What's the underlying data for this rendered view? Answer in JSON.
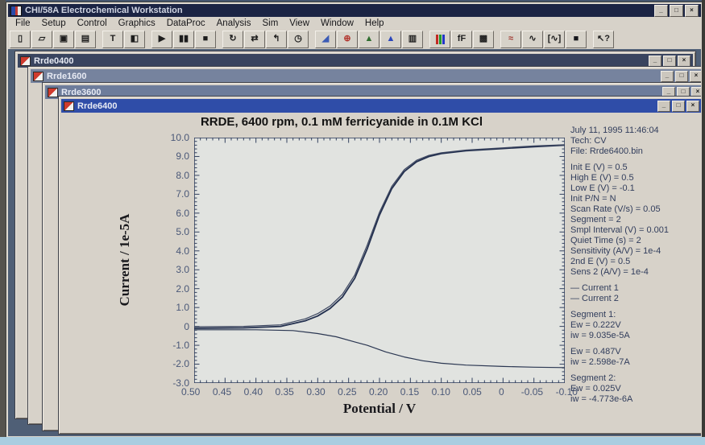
{
  "app": {
    "title": "CHI/58A Electrochemical Workstation",
    "window_controls": [
      "_",
      "□",
      "×"
    ]
  },
  "menu": {
    "items": [
      "File",
      "Setup",
      "Control",
      "Graphics",
      "DataProc",
      "Analysis",
      "Sim",
      "View",
      "Window",
      "Help"
    ]
  },
  "toolbar": {
    "buttons": [
      {
        "name": "new",
        "glyph": "▯"
      },
      {
        "name": "open",
        "glyph": "▱"
      },
      {
        "name": "save",
        "glyph": "▣"
      },
      {
        "name": "print",
        "glyph": "▤"
      },
      {
        "name": "text-tool",
        "glyph": "T"
      },
      {
        "name": "window-tool",
        "glyph": "◧"
      },
      {
        "name": "run",
        "glyph": "▶"
      },
      {
        "name": "pause",
        "glyph": "▮▮"
      },
      {
        "name": "stop",
        "glyph": "■"
      },
      {
        "name": "repeat",
        "glyph": "↻"
      },
      {
        "name": "reverse",
        "glyph": "⇄"
      },
      {
        "name": "step",
        "glyph": "↰"
      },
      {
        "name": "timer",
        "glyph": "◷"
      },
      {
        "name": "graph",
        "glyph": "◢"
      },
      {
        "name": "zoom",
        "glyph": "⊕"
      },
      {
        "name": "peak-green",
        "glyph": "▲"
      },
      {
        "name": "peak-blue",
        "glyph": "▲"
      },
      {
        "name": "overlay",
        "glyph": "▥"
      },
      {
        "name": "colors",
        "glyph": ""
      },
      {
        "name": "font",
        "glyph": "fF"
      },
      {
        "name": "copy",
        "glyph": "▩"
      },
      {
        "name": "smooth",
        "glyph": "≈"
      },
      {
        "name": "wave",
        "glyph": "∿"
      },
      {
        "name": "fit",
        "glyph": "[∿]"
      },
      {
        "name": "data-window",
        "glyph": "■"
      },
      {
        "name": "help",
        "glyph": "↖?"
      }
    ]
  },
  "windows": [
    {
      "title": "Rrde0400",
      "state": "inactive"
    },
    {
      "title": "Rrde1600",
      "state": "inactive"
    },
    {
      "title": "Rrde3600",
      "state": "inactive"
    },
    {
      "title": "Rrde6400",
      "state": "active"
    }
  ],
  "chart_data": {
    "type": "line",
    "title": "RRDE, 6400 rpm, 0.1 mM ferricyanide in 0.1M KCl",
    "xlabel": "Potential / V",
    "ylabel": "Current / 1e-5A",
    "x_range": [
      0.5,
      -0.1
    ],
    "y_range": [
      -3.0,
      10.0
    ],
    "x_axis_reversed": true,
    "grid": false,
    "x_major_tick": 0.05,
    "x_minor_tick": 0.01,
    "y_major_tick": 1.0,
    "y_minor_tick": 0.2,
    "axis_color": "#32405e",
    "plot_bg": "#e1e3e0",
    "x_tick_labels": [
      "0.50",
      "0.45",
      "0.40",
      "0.35",
      "0.30",
      "0.25",
      "0.20",
      "0.15",
      "0.10",
      "0.05",
      "0",
      "-0.05",
      "-0.10"
    ],
    "y_tick_labels": [
      "10.0",
      "9.0",
      "8.0",
      "7.0",
      "6.0",
      "5.0",
      "4.0",
      "3.0",
      "2.0",
      "1.0",
      "0",
      "-1.0",
      "-2.0",
      "-3.0"
    ],
    "series": [
      {
        "name": "Current 1 (disk, segment 1)",
        "color": "#23304f",
        "width": 1.8,
        "points": [
          [
            0.5,
            -0.1
          ],
          [
            0.42,
            -0.08
          ],
          [
            0.36,
            0.0
          ],
          [
            0.32,
            0.3
          ],
          [
            0.3,
            0.55
          ],
          [
            0.28,
            0.95
          ],
          [
            0.26,
            1.55
          ],
          [
            0.24,
            2.55
          ],
          [
            0.22,
            4.1
          ],
          [
            0.2,
            5.9
          ],
          [
            0.18,
            7.3
          ],
          [
            0.16,
            8.2
          ],
          [
            0.14,
            8.72
          ],
          [
            0.12,
            9.0
          ],
          [
            0.1,
            9.15
          ],
          [
            0.06,
            9.3
          ],
          [
            0.0,
            9.42
          ],
          [
            -0.05,
            9.52
          ],
          [
            -0.1,
            9.6
          ]
        ]
      },
      {
        "name": "Current 1 (disk, segment 2)",
        "color": "#3c4660",
        "width": 1.2,
        "points": [
          [
            0.5,
            -0.02
          ],
          [
            0.42,
            0.0
          ],
          [
            0.36,
            0.08
          ],
          [
            0.32,
            0.4
          ],
          [
            0.3,
            0.68
          ],
          [
            0.28,
            1.08
          ],
          [
            0.26,
            1.7
          ],
          [
            0.24,
            2.72
          ],
          [
            0.22,
            4.3
          ],
          [
            0.2,
            6.05
          ],
          [
            0.18,
            7.42
          ],
          [
            0.16,
            8.3
          ],
          [
            0.14,
            8.8
          ],
          [
            0.12,
            9.06
          ],
          [
            0.1,
            9.2
          ],
          [
            0.06,
            9.34
          ],
          [
            0.0,
            9.46
          ],
          [
            -0.05,
            9.56
          ],
          [
            -0.1,
            9.62
          ]
        ]
      },
      {
        "name": "Current 2 (ring)",
        "color": "#2b3752",
        "width": 1.2,
        "points": [
          [
            0.5,
            -0.18
          ],
          [
            0.4,
            -0.18
          ],
          [
            0.34,
            -0.22
          ],
          [
            0.3,
            -0.38
          ],
          [
            0.27,
            -0.55
          ],
          [
            0.24,
            -0.82
          ],
          [
            0.22,
            -1.0
          ],
          [
            0.19,
            -1.35
          ],
          [
            0.16,
            -1.62
          ],
          [
            0.13,
            -1.82
          ],
          [
            0.1,
            -1.95
          ],
          [
            0.06,
            -2.05
          ],
          [
            0.0,
            -2.12
          ],
          [
            -0.05,
            -2.16
          ],
          [
            -0.1,
            -2.18
          ]
        ]
      }
    ],
    "legend": {
      "position": "right-panel",
      "entries": [
        "Current 1",
        "Current 2"
      ]
    }
  },
  "info_panel": {
    "lines": [
      "July 11, 1995  11:46:04",
      "Tech: CV",
      "File: Rrde6400.bin",
      "",
      "Init E (V) = 0.5",
      "High E (V) = 0.5",
      "Low E (V) = -0.1",
      "Init P/N = N",
      "Scan Rate (V/s) = 0.05",
      "Segment = 2",
      "Smpl Interval (V) = 0.001",
      "Quiet Time (s) = 2",
      "Sensitivity (A/V) = 1e-4",
      "2nd E (V) = 0.5",
      "Sens 2 (A/V) = 1e-4",
      "",
      "— Current 1",
      "— Current 2",
      "",
      "Segment 1:",
      "Ew = 0.222V",
      "iw = 9.035e-5A",
      "",
      "Ew = 0.487V",
      "iw = 2.598e-7A",
      "",
      "Segment 2:",
      "Ew = 0.025V",
      "iw = -4.773e-6A"
    ]
  },
  "colors": {
    "app_titlebar": "#1b2444",
    "active_titlebar": "#2f4da8",
    "inactive_titlebar_dark": "#39445f",
    "inactive_titlebar": "#76839e",
    "desktop": "#4f5f76",
    "window_bg": "#d7d2c9",
    "plot_bg": "#e1e3e0",
    "curve1": "#23304f",
    "curve2": "#2b3752",
    "bottom_bezel": "#a9cde0"
  }
}
